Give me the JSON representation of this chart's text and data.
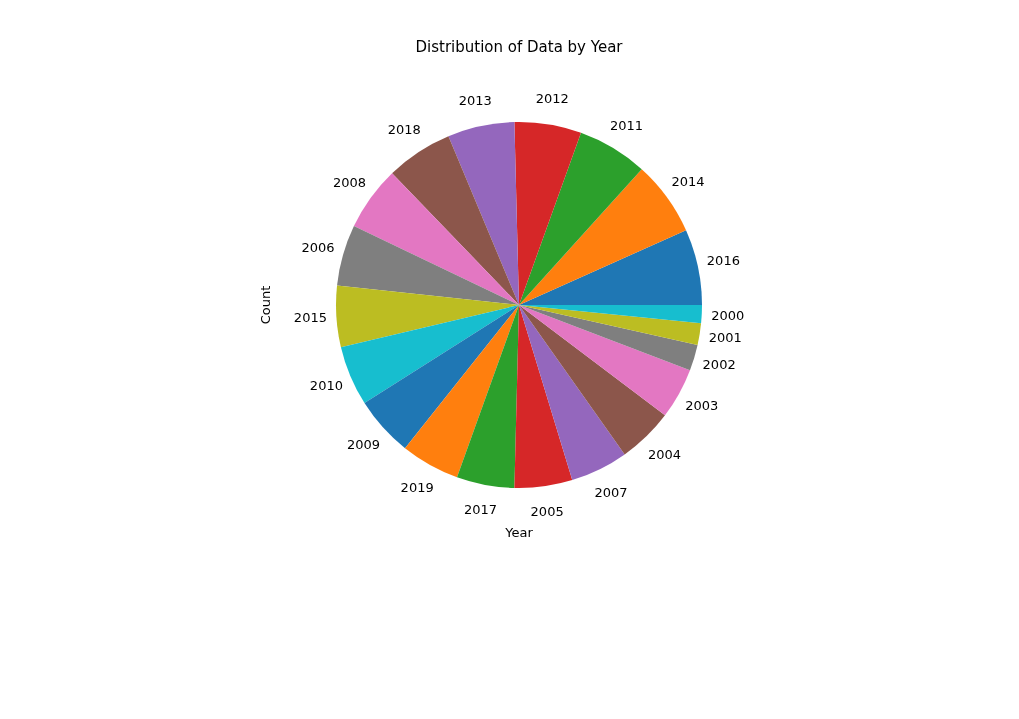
{
  "chart_data": {
    "type": "pie",
    "title": "Distribution of Data by Year",
    "xlabel": "Year",
    "ylabel": "Count",
    "categories": [
      "2016",
      "2014",
      "2011",
      "2012",
      "2013",
      "2018",
      "2008",
      "2006",
      "2015",
      "2010",
      "2009",
      "2019",
      "2017",
      "2005",
      "2007",
      "2004",
      "2003",
      "2002",
      "2001",
      "2000"
    ],
    "values": [
      6.7,
      6.6,
      6.2,
      5.9,
      5.9,
      5.9,
      5.7,
      5.4,
      5.4,
      5.3,
      5.3,
      5.2,
      5.1,
      5.1,
      5.1,
      4.9,
      4.5,
      2.3,
      1.9,
      1.6
    ],
    "colors": [
      "#1f77b4",
      "#ff7f0e",
      "#2ca02c",
      "#d62728",
      "#9467bd",
      "#8c564b",
      "#e377c2",
      "#7f7f7f",
      "#bcbd22",
      "#17becf",
      "#1f77b4",
      "#ff7f0e",
      "#2ca02c",
      "#d62728",
      "#9467bd",
      "#8c564b",
      "#e377c2",
      "#7f7f7f",
      "#bcbd22",
      "#17becf"
    ],
    "legend": false
  }
}
